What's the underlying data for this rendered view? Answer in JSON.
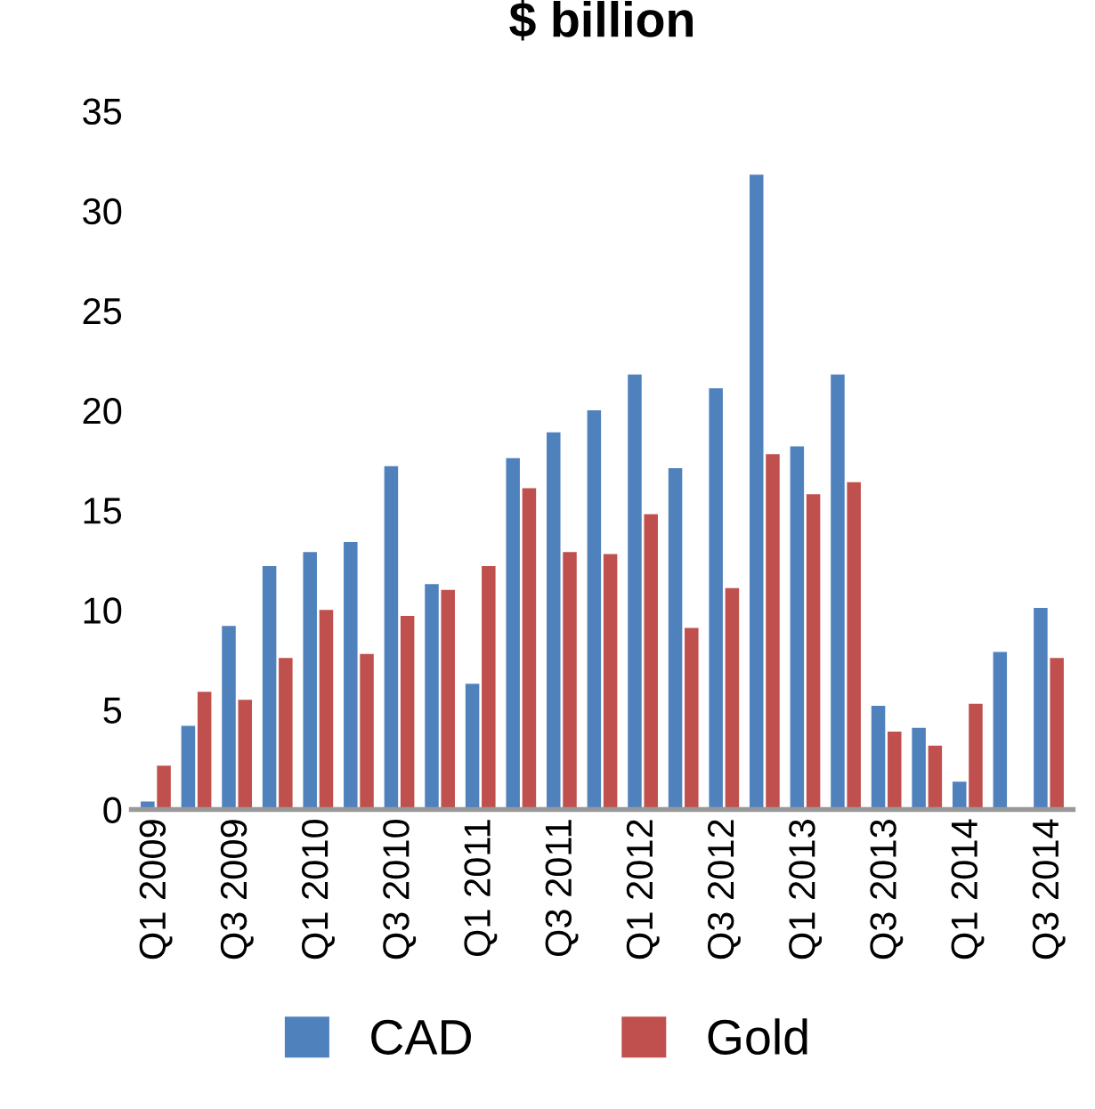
{
  "chart_data": {
    "type": "bar",
    "title": "$ billion",
    "categories": [
      "Q1 2009",
      null,
      "Q3 2009",
      null,
      "Q1 2010",
      null,
      "Q3 2010",
      null,
      "Q1 2011",
      null,
      "Q3 2011",
      null,
      "Q1 2012",
      null,
      "Q3 2012",
      null,
      "Q1 2013",
      null,
      "Q3 2013",
      null,
      "Q1 2014",
      null,
      "Q3 2014"
    ],
    "series": [
      {
        "name": "CAD",
        "color": "#4f81bd",
        "values": [
          0.4,
          4.2,
          9.2,
          12.2,
          12.9,
          13.4,
          17.2,
          11.3,
          6.3,
          17.6,
          18.9,
          20.0,
          21.8,
          17.1,
          21.1,
          31.8,
          18.2,
          21.8,
          5.2,
          4.1,
          1.4,
          7.9,
          10.1
        ]
      },
      {
        "name": "Gold",
        "color": "#c0504d",
        "values": [
          2.2,
          5.9,
          5.5,
          7.6,
          10.0,
          7.8,
          9.7,
          11.0,
          12.2,
          16.1,
          12.9,
          12.8,
          14.8,
          9.1,
          11.1,
          17.8,
          15.8,
          16.4,
          3.9,
          3.2,
          5.3,
          null,
          7.6
        ]
      }
    ],
    "ylim": [
      0,
      35
    ],
    "yticks": [
      0,
      5,
      10,
      15,
      20,
      25,
      30,
      35
    ],
    "grid": false,
    "legend": "bottom"
  }
}
